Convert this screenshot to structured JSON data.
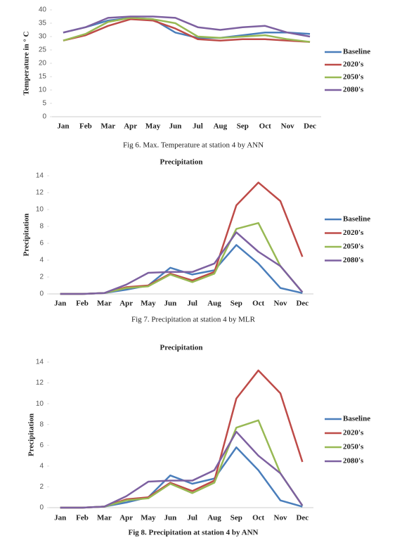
{
  "chart_data": [
    {
      "type": "line",
      "caption": "Fig 6. Max. Temperature at station 4 by ANN",
      "y_label": "Temperature in ° C",
      "categories": [
        "Jan",
        "Feb",
        "Mar",
        "Apr",
        "May",
        "Jun",
        "Jul",
        "Aug",
        "Sep",
        "Oct",
        "Nov",
        "Dec"
      ],
      "ylim": [
        0,
        40
      ],
      "yticks": [
        0,
        5,
        10,
        15,
        20,
        25,
        30,
        35,
        40
      ],
      "legend": "right",
      "series": [
        {
          "name": "Baseline",
          "color": "#4a7ebb",
          "values": [
            31.5,
            33.5,
            36,
            37,
            36.5,
            31.5,
            29.5,
            29.5,
            30.5,
            31.5,
            31.5,
            31
          ]
        },
        {
          "name": "2020's",
          "color": "#be4b48",
          "values": [
            28.5,
            30.5,
            34,
            36.5,
            36,
            33,
            29,
            28.5,
            29,
            29,
            28.5,
            28
          ]
        },
        {
          "name": "2050's",
          "color": "#98b954",
          "values": [
            28.5,
            31,
            35.5,
            37,
            36.5,
            35,
            30,
            29.5,
            30,
            30.5,
            29,
            28
          ]
        },
        {
          "name": "2080's",
          "color": "#7d60a0",
          "values": [
            31.5,
            33.5,
            37,
            37.5,
            37.5,
            37,
            33.5,
            32.5,
            33.5,
            34,
            31.5,
            30
          ]
        }
      ]
    },
    {
      "type": "line",
      "title": "Precipitation",
      "caption": "Fig 7. Precipitation at station 4 by MLR",
      "y_label": "Precipitation",
      "categories": [
        "Jan",
        "Feb",
        "Mar",
        "Apr",
        "May",
        "Jun",
        "Jul",
        "Aug",
        "Sep",
        "Oct",
        "Nov",
        "Dec"
      ],
      "ylim": [
        0,
        14
      ],
      "yticks": [
        0,
        2,
        4,
        6,
        8,
        10,
        12,
        14
      ],
      "legend": "right",
      "series": [
        {
          "name": "Baseline",
          "color": "#4a7ebb",
          "values": [
            0,
            0,
            0.1,
            0.5,
            1.0,
            3.1,
            2.3,
            2.8,
            5.8,
            3.6,
            0.7,
            0.1
          ]
        },
        {
          "name": "2020's",
          "color": "#be4b48",
          "values": [
            0,
            0,
            0.1,
            0.8,
            1.0,
            2.4,
            1.6,
            2.6,
            10.5,
            13.2,
            11,
            4.4
          ]
        },
        {
          "name": "2050's",
          "color": "#98b954",
          "values": [
            0,
            0,
            0.1,
            0.7,
            0.9,
            2.3,
            1.4,
            2.4,
            7.7,
            8.4,
            3.3,
            0.2
          ]
        },
        {
          "name": "2080's",
          "color": "#7d60a0",
          "values": [
            0,
            0,
            0.1,
            1.1,
            2.5,
            2.6,
            2.6,
            3.6,
            7.3,
            5.0,
            3.3,
            0.2
          ]
        }
      ]
    },
    {
      "type": "line",
      "title": "Precipitation",
      "caption": "Fig 8. Precipitation at station 4 by ANN",
      "y_label": "Precipitation",
      "categories": [
        "Jan",
        "Feb",
        "Mar",
        "Apr",
        "May",
        "Jun",
        "Jul",
        "Aug",
        "Sep",
        "Oct",
        "Nov",
        "Dec"
      ],
      "ylim": [
        0,
        14
      ],
      "yticks": [
        0,
        2,
        4,
        6,
        8,
        10,
        12,
        14
      ],
      "legend": "right",
      "series": [
        {
          "name": "Baseline",
          "color": "#4a7ebb",
          "values": [
            0,
            0,
            0.1,
            0.5,
            1.0,
            3.1,
            2.3,
            2.8,
            5.8,
            3.6,
            0.7,
            0.1
          ]
        },
        {
          "name": "2020's",
          "color": "#be4b48",
          "values": [
            0,
            0,
            0.1,
            0.8,
            1.0,
            2.4,
            1.6,
            2.6,
            10.5,
            13.2,
            11,
            4.4
          ]
        },
        {
          "name": "2050's",
          "color": "#98b954",
          "values": [
            0,
            0,
            0.1,
            0.7,
            0.9,
            2.3,
            1.4,
            2.4,
            7.7,
            8.4,
            3.3,
            0.2
          ]
        },
        {
          "name": "2080's",
          "color": "#7d60a0",
          "values": [
            0,
            0,
            0.1,
            1.1,
            2.5,
            2.6,
            2.6,
            3.6,
            7.3,
            5.0,
            3.3,
            0.2
          ]
        }
      ]
    }
  ]
}
